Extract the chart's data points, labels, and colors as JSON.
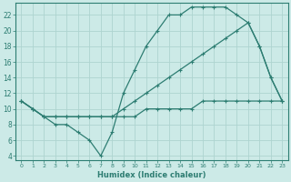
{
  "xlabel": "Humidex (Indice chaleur)",
  "bg_color": "#cceae7",
  "line_color": "#2d7d72",
  "grid_color": "#aed4d0",
  "xlim": [
    -0.5,
    23.5
  ],
  "ylim": [
    3.5,
    23.5
  ],
  "xticks": [
    0,
    1,
    2,
    3,
    4,
    5,
    6,
    7,
    8,
    9,
    10,
    11,
    12,
    13,
    14,
    15,
    16,
    17,
    18,
    19,
    20,
    21,
    22,
    23
  ],
  "yticks": [
    4,
    6,
    8,
    10,
    12,
    14,
    16,
    18,
    20,
    22
  ],
  "line1_x": [
    0,
    1,
    2,
    3,
    4,
    5,
    6,
    7,
    8,
    9,
    10,
    11,
    12,
    13,
    14,
    15,
    16,
    17,
    18,
    19,
    20,
    21,
    22,
    23
  ],
  "line1_y": [
    11,
    10,
    9,
    8,
    8,
    7,
    6,
    4,
    7,
    12,
    15,
    18,
    20,
    22,
    22,
    23,
    23,
    23,
    23,
    22,
    21,
    18,
    14,
    11
  ],
  "line2_x": [
    0,
    1,
    2,
    3,
    4,
    5,
    6,
    7,
    8,
    9,
    10,
    11,
    12,
    13,
    14,
    15,
    16,
    17,
    18,
    19,
    20,
    21,
    22,
    23
  ],
  "line2_y": [
    11,
    10,
    9,
    9,
    9,
    9,
    9,
    9,
    9,
    10,
    11,
    12,
    13,
    14,
    15,
    16,
    17,
    18,
    19,
    20,
    21,
    18,
    14,
    11
  ],
  "line3_x": [
    0,
    1,
    2,
    3,
    4,
    5,
    6,
    7,
    8,
    9,
    10,
    11,
    12,
    13,
    14,
    15,
    16,
    17,
    18,
    19,
    20,
    21,
    22,
    23
  ],
  "line3_y": [
    11,
    10,
    9,
    9,
    9,
    9,
    9,
    9,
    9,
    9,
    9,
    10,
    10,
    10,
    10,
    10,
    11,
    11,
    11,
    11,
    11,
    11,
    11,
    11
  ]
}
